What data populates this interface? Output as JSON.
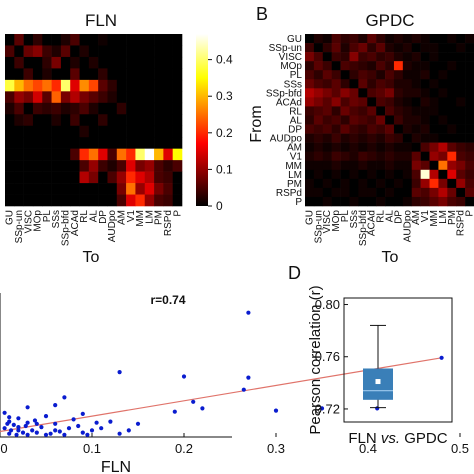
{
  "colors": {
    "scatter_point": "#0a1ccf",
    "fit_line": "#e0736a",
    "box_fill": "#3a7fb8",
    "box_median": "#9ec9ee",
    "box_mean": "#ffffff",
    "whisker": "#111111"
  },
  "panel_labels": {
    "b": "B",
    "d": "D"
  },
  "chart_data": [
    {
      "type": "heatmap",
      "title": "FLN",
      "xlabel": "To",
      "ylabel": "",
      "xticklabels": [
        "GU",
        "SSp-un",
        "VISC",
        "MOp",
        "PL",
        "SSs",
        "SSp-bfd",
        "ACAd",
        "RL",
        "AL",
        "DP",
        "AUDpo",
        "AM",
        "V1",
        "MM",
        "LM",
        "PM",
        "RSPd",
        "P"
      ],
      "yticklabels": [],
      "colorbar": {
        "colormap": "hot",
        "range": [
          0,
          0.47
        ],
        "ticks": [
          "0.4",
          "0.3",
          "0.2",
          "0.1",
          "0"
        ]
      },
      "values": [
        [
          0,
          0.06,
          0,
          0.03,
          0,
          0,
          0.02,
          0.05,
          0,
          0,
          0.01,
          0,
          0,
          0,
          0,
          0,
          0,
          0,
          0
        ],
        [
          0.05,
          0,
          0.07,
          0.09,
          0.04,
          0.02,
          0.06,
          0,
          0.02,
          0,
          0,
          0,
          0,
          0,
          0,
          0,
          0,
          0,
          0
        ],
        [
          0,
          0.04,
          0,
          0,
          0.03,
          0.08,
          0,
          0.02,
          0,
          0.02,
          0,
          0,
          0,
          0,
          0,
          0,
          0,
          0,
          0
        ],
        [
          0,
          0,
          0.04,
          0,
          0.02,
          0,
          0,
          0.06,
          0,
          0,
          0.03,
          0,
          0,
          0,
          0,
          0,
          0,
          0,
          0
        ],
        [
          0.38,
          0.3,
          0.25,
          0.22,
          0.25,
          0.2,
          0.4,
          0.15,
          0.27,
          0.22,
          0.06,
          0.03,
          0,
          0,
          0,
          0,
          0,
          0,
          0
        ],
        [
          0.05,
          0.1,
          0.08,
          0.14,
          0.06,
          0.24,
          0.08,
          0.12,
          0.08,
          0.06,
          0.04,
          0.02,
          0,
          0,
          0,
          0,
          0,
          0,
          0
        ],
        [
          0.02,
          0.05,
          0,
          0.04,
          0.03,
          0.04,
          0.02,
          0.03,
          0.05,
          0.02,
          0,
          0,
          0.03,
          0,
          0,
          0,
          0,
          0,
          0
        ],
        [
          0,
          0.02,
          0.03,
          0,
          0,
          0.02,
          0,
          0.04,
          0,
          0,
          0.03,
          0,
          0,
          0,
          0,
          0,
          0,
          0,
          0
        ],
        [
          0,
          0,
          0,
          0,
          0,
          0,
          0,
          0,
          0.02,
          0,
          0,
          0,
          0,
          0,
          0,
          0,
          0,
          0,
          0
        ],
        [
          0,
          0,
          0,
          0,
          0,
          0,
          0,
          0,
          0,
          0,
          0,
          0,
          0,
          0,
          0,
          0,
          0,
          0,
          0
        ],
        [
          0,
          0,
          0,
          0,
          0,
          0,
          0,
          0.05,
          0.2,
          0.25,
          0.15,
          0.05,
          0.25,
          0.2,
          0.4,
          0.5,
          0.3,
          0.15,
          0.35
        ],
        [
          0,
          0,
          0,
          0,
          0,
          0,
          0,
          0,
          0.05,
          0.1,
          0.04,
          0.02,
          0.05,
          0.15,
          0.08,
          0.1,
          0.05,
          0.03,
          0.05
        ],
        [
          0,
          0,
          0,
          0,
          0,
          0,
          0,
          0,
          0.12,
          0.08,
          0,
          0.05,
          0.1,
          0.2,
          0.15,
          0.12,
          0.05,
          0.04,
          0
        ],
        [
          0,
          0,
          0,
          0,
          0,
          0,
          0,
          0,
          0,
          0,
          0,
          0,
          0.08,
          0.25,
          0.1,
          0.15,
          0.08,
          0.05,
          0
        ],
        [
          0,
          0,
          0,
          0,
          0,
          0,
          0,
          0,
          0,
          0,
          0,
          0,
          0.05,
          0.15,
          0.2,
          0.1,
          0.05,
          0.04,
          0
        ]
      ]
    },
    {
      "type": "heatmap",
      "title": "GPDC",
      "xlabel": "To",
      "ylabel": "From",
      "xticklabels": [
        "GU",
        "SSp-un",
        "VISC",
        "MOp",
        "PL",
        "SSs",
        "SSp-bfd",
        "ACAd",
        "RL",
        "AL",
        "DP",
        "AUDpo",
        "AM",
        "V1",
        "MM",
        "LM",
        "PM",
        "RSPd",
        "P"
      ],
      "yticklabels": [
        "GU",
        "SSp-un",
        "VISC",
        "MOp",
        "PL",
        "SSs",
        "SSp-bfd",
        "ACAd",
        "RL",
        "AL",
        "DP",
        "AUDpo",
        "AM",
        "V1",
        "MM",
        "LM",
        "PM",
        "RSPd",
        "P"
      ],
      "values": [
        [
          0,
          0.02,
          0.01,
          0.05,
          0.03,
          0.04,
          0.02,
          0.06,
          0.03,
          0.01,
          0.02,
          0.01,
          0.02,
          0.01,
          0,
          0,
          0.01,
          0,
          0.01
        ],
        [
          0.04,
          0,
          0.03,
          0.06,
          0.02,
          0.05,
          0.07,
          0.03,
          0.06,
          0.02,
          0.01,
          0.02,
          0,
          0.01,
          0.01,
          0,
          0,
          0.01,
          0
        ],
        [
          0.08,
          0.05,
          0,
          0.04,
          0.03,
          0.09,
          0.04,
          0.05,
          0.03,
          0.04,
          0.02,
          0.01,
          0.02,
          0,
          0.01,
          0,
          0,
          0,
          0
        ],
        [
          0.03,
          0.06,
          0.04,
          0,
          0.05,
          0.04,
          0.03,
          0.02,
          0.05,
          0.03,
          0.2,
          0.02,
          0.01,
          0.01,
          0,
          0,
          0.01,
          0,
          0
        ],
        [
          0.05,
          0.03,
          0.06,
          0.04,
          0,
          0.03,
          0.05,
          0.04,
          0.02,
          0.05,
          0.03,
          0.01,
          0.01,
          0.02,
          0,
          0.01,
          0,
          0,
          0
        ],
        [
          0.07,
          0.05,
          0.04,
          0.06,
          0.03,
          0,
          0.06,
          0.03,
          0.05,
          0.04,
          0.02,
          0.02,
          0.01,
          0,
          0.01,
          0,
          0,
          0,
          0
        ],
        [
          0.12,
          0.1,
          0.08,
          0.06,
          0.09,
          0.07,
          0,
          0.05,
          0.06,
          0.08,
          0.03,
          0.02,
          0.02,
          0.01,
          0,
          0.01,
          0,
          0,
          0
        ],
        [
          0.1,
          0.08,
          0.06,
          0.09,
          0.05,
          0.07,
          0.06,
          0,
          0.05,
          0.04,
          0.02,
          0.01,
          0,
          0.02,
          0.01,
          0,
          0,
          0.01,
          0
        ],
        [
          0.04,
          0.05,
          0.06,
          0.03,
          0.07,
          0.05,
          0.04,
          0.06,
          0,
          0.05,
          0.03,
          0.02,
          0.01,
          0.01,
          0.01,
          0,
          0,
          0,
          0
        ],
        [
          0.03,
          0.06,
          0.04,
          0.05,
          0.03,
          0.06,
          0.05,
          0.04,
          0.07,
          0,
          0.04,
          0.02,
          0.02,
          0.01,
          0,
          0.01,
          0,
          0,
          0
        ],
        [
          0.05,
          0.04,
          0.05,
          0.03,
          0.06,
          0.04,
          0.03,
          0.05,
          0.04,
          0.06,
          0,
          0.02,
          0.01,
          0.02,
          0,
          0,
          0.01,
          0,
          0
        ],
        [
          0.02,
          0.03,
          0.02,
          0.04,
          0.02,
          0.03,
          0.02,
          0.03,
          0.02,
          0.04,
          0.03,
          0,
          0.02,
          0.01,
          0.01,
          0,
          0,
          0,
          0
        ],
        [
          0.01,
          0.02,
          0.01,
          0.02,
          0.01,
          0.02,
          0.01,
          0.02,
          0.01,
          0.02,
          0.01,
          0.01,
          0,
          0.05,
          0.08,
          0.12,
          0.06,
          0.04,
          0.03
        ],
        [
          0.02,
          0.03,
          0.02,
          0.04,
          0.03,
          0.02,
          0.04,
          0.03,
          0.02,
          0.03,
          0.02,
          0.02,
          0.06,
          0,
          0.1,
          0.08,
          0.2,
          0.05,
          0.04
        ],
        [
          0.01,
          0.01,
          0.01,
          0.02,
          0.01,
          0.01,
          0.02,
          0.01,
          0.01,
          0.02,
          0.01,
          0.01,
          0.08,
          0.06,
          0,
          0.25,
          0.1,
          0.08,
          0.05
        ],
        [
          0,
          0.01,
          0,
          0.01,
          0,
          0.01,
          0,
          0.01,
          0,
          0.01,
          0,
          0.01,
          0.05,
          0.45,
          0.12,
          0,
          0.15,
          0.06,
          0.04
        ],
        [
          0.01,
          0,
          0.01,
          0,
          0.01,
          0,
          0.01,
          0,
          0.01,
          0,
          0.01,
          0,
          0.04,
          0.1,
          0.2,
          0.08,
          0,
          0.1,
          0.05
        ],
        [
          0.01,
          0.01,
          0,
          0.01,
          0.01,
          0,
          0.01,
          0.01,
          0,
          0.01,
          0,
          0,
          0.06,
          0.05,
          0.08,
          0.12,
          0.07,
          0,
          0.06
        ],
        [
          0,
          0,
          0.01,
          0,
          0,
          0.01,
          0,
          0,
          0.01,
          0,
          0,
          0.01,
          0.03,
          0.04,
          0.06,
          0.08,
          0.05,
          0.04,
          0
        ]
      ]
    },
    {
      "type": "scatter",
      "title": "",
      "xlabel": "FLN",
      "ylabel": "",
      "xlim": [
        0,
        0.5
      ],
      "xticks": [
        0,
        0.1,
        0.2,
        0.3,
        0.4,
        0.5
      ],
      "xticklabels": [
        "0",
        "0.1",
        "0.2",
        "0.3",
        "0.4",
        "0.5"
      ],
      "ylim": [
        0,
        0.13
      ],
      "annotation": "r=0.74",
      "fit_line": {
        "x": [
          0,
          0.48
        ],
        "y": [
          0.005,
          0.072
        ]
      },
      "points": [
        [
          0.27,
          0.113
        ],
        [
          0.48,
          0.072
        ],
        [
          0.13,
          0.059
        ],
        [
          0.27,
          0.054
        ],
        [
          0.265,
          0.043
        ],
        [
          0.21,
          0.032
        ],
        [
          0.22,
          0.026
        ],
        [
          0.2,
          0.055
        ],
        [
          0.41,
          0.026
        ],
        [
          0.35,
          0.026
        ],
        [
          0.3,
          0.024
        ],
        [
          0.19,
          0.023
        ],
        [
          0.09,
          0.021
        ],
        [
          0.12,
          0.014
        ],
        [
          0.15,
          0.012
        ],
        [
          0.105,
          0.013
        ],
        [
          0.07,
          0.036
        ],
        [
          0.06,
          0.029
        ],
        [
          0.03,
          0.027
        ],
        [
          0.05,
          0.019
        ],
        [
          0.08,
          0.016
        ],
        [
          0.04,
          0.012
        ],
        [
          0.02,
          0.009
        ],
        [
          0.06,
          0.006
        ],
        [
          0.1,
          0.006
        ],
        [
          0.13,
          0.003
        ],
        [
          0.09,
          0.004
        ],
        [
          0.03,
          0.013
        ],
        [
          0.01,
          0.018
        ],
        [
          0.005,
          0.022
        ],
        [
          0.02,
          0.006
        ],
        [
          0.04,
          0.004
        ],
        [
          0.01,
          0.003
        ],
        [
          0.03,
          0.002
        ],
        [
          0.05,
          0.002
        ],
        [
          0.07,
          0.002
        ],
        [
          0.015,
          0.011
        ],
        [
          0.005,
          0.008
        ],
        [
          0.01,
          0.014
        ],
        [
          0.02,
          0.017
        ],
        [
          0.045,
          0.009
        ],
        [
          0.06,
          0.012
        ],
        [
          0.075,
          0.008
        ],
        [
          0.085,
          0.01
        ],
        [
          0.11,
          0.008
        ],
        [
          0.025,
          0.004
        ],
        [
          0.035,
          0.006
        ],
        [
          0.055,
          0.003
        ],
        [
          0.012,
          0.006
        ],
        [
          0.008,
          0.012
        ],
        [
          0.018,
          0.002
        ],
        [
          0.028,
          0.01
        ],
        [
          0.038,
          0.015
        ],
        [
          0.065,
          0.005
        ],
        [
          0.095,
          0.002
        ],
        [
          0.14,
          0.006
        ]
      ]
    },
    {
      "type": "box",
      "title": "",
      "xlabel": "FLN vs. GPDC",
      "ylabel": "Pearson correlation (r)",
      "ylim": [
        0.71,
        0.805
      ],
      "yticks": [
        0.72,
        0.76,
        0.8
      ],
      "yticklabels": [
        "0.72",
        "0.76",
        "0.80"
      ],
      "box": {
        "whisker_low": 0.721,
        "q1": 0.727,
        "median": 0.734,
        "q3": 0.751,
        "whisker_high": 0.784,
        "mean": 0.741
      }
    }
  ]
}
